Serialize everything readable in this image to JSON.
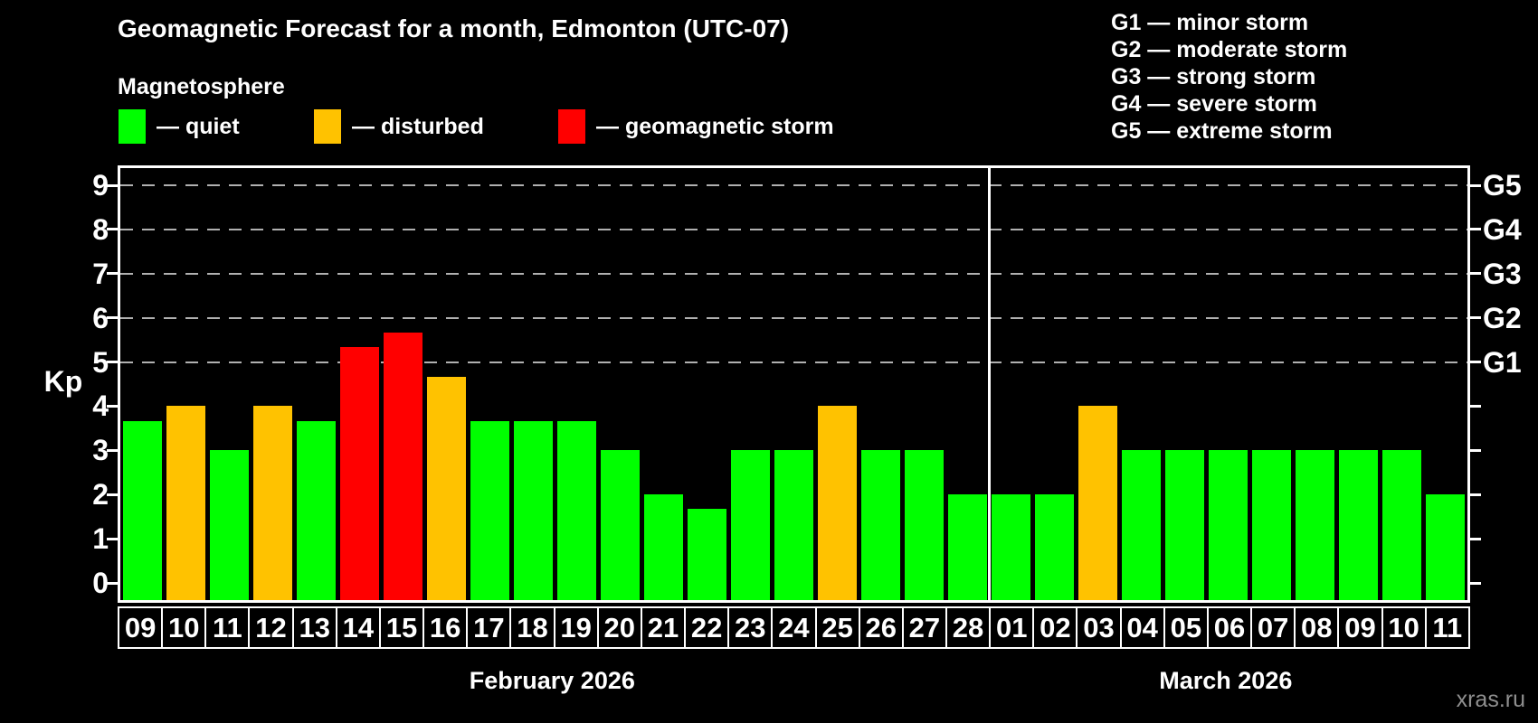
{
  "title": "Geomagnetic Forecast for a month, Edmonton (UTC-07)",
  "subtitle": "Magnetosphere",
  "watermark": "xras.ru",
  "colors": {
    "quiet": "#00ff00",
    "disturbed": "#ffc200",
    "storm": "#ff0000",
    "grid": "#b0b0b0",
    "frame": "#ffffff"
  },
  "legend": {
    "items": [
      {
        "status": "quiet",
        "label": "— quiet"
      },
      {
        "status": "disturbed",
        "label": "— disturbed"
      },
      {
        "status": "storm",
        "label": "— geomagnetic storm"
      }
    ]
  },
  "g_legend": [
    "G1 — minor storm",
    "G2 — moderate storm",
    "G3 — strong storm",
    "G4 — severe storm",
    "G5 — extreme storm"
  ],
  "chart_data": {
    "type": "bar",
    "title": "Geomagnetic Forecast for a month, Edmonton (UTC-07)",
    "ylabel": "Kp",
    "ylim": [
      0,
      9
    ],
    "y_ticks": [
      0,
      1,
      2,
      3,
      4,
      5,
      6,
      7,
      8,
      9
    ],
    "grid_levels": [
      {
        "kp": 5,
        "label": "G1"
      },
      {
        "kp": 6,
        "label": "G2"
      },
      {
        "kp": 7,
        "label": "G3"
      },
      {
        "kp": 8,
        "label": "G4"
      },
      {
        "kp": 9,
        "label": "G5"
      }
    ],
    "months": [
      {
        "label": "February 2026",
        "days": [
          {
            "day": "09",
            "kp": 3.67,
            "status": "quiet"
          },
          {
            "day": "10",
            "kp": 4.0,
            "status": "disturbed"
          },
          {
            "day": "11",
            "kp": 3.0,
            "status": "quiet"
          },
          {
            "day": "12",
            "kp": 4.0,
            "status": "disturbed"
          },
          {
            "day": "13",
            "kp": 3.67,
            "status": "quiet"
          },
          {
            "day": "14",
            "kp": 5.33,
            "status": "storm"
          },
          {
            "day": "15",
            "kp": 5.67,
            "status": "storm"
          },
          {
            "day": "16",
            "kp": 4.67,
            "status": "disturbed"
          },
          {
            "day": "17",
            "kp": 3.67,
            "status": "quiet"
          },
          {
            "day": "18",
            "kp": 3.67,
            "status": "quiet"
          },
          {
            "day": "19",
            "kp": 3.67,
            "status": "quiet"
          },
          {
            "day": "20",
            "kp": 3.0,
            "status": "quiet"
          },
          {
            "day": "21",
            "kp": 2.0,
            "status": "quiet"
          },
          {
            "day": "22",
            "kp": 1.67,
            "status": "quiet"
          },
          {
            "day": "23",
            "kp": 3.0,
            "status": "quiet"
          },
          {
            "day": "24",
            "kp": 3.0,
            "status": "quiet"
          },
          {
            "day": "25",
            "kp": 4.0,
            "status": "disturbed"
          },
          {
            "day": "26",
            "kp": 3.0,
            "status": "quiet"
          },
          {
            "day": "27",
            "kp": 3.0,
            "status": "quiet"
          },
          {
            "day": "28",
            "kp": 2.0,
            "status": "quiet"
          }
        ]
      },
      {
        "label": "March 2026",
        "days": [
          {
            "day": "01",
            "kp": 2.0,
            "status": "quiet"
          },
          {
            "day": "02",
            "kp": 2.0,
            "status": "quiet"
          },
          {
            "day": "03",
            "kp": 4.0,
            "status": "disturbed"
          },
          {
            "day": "04",
            "kp": 3.0,
            "status": "quiet"
          },
          {
            "day": "05",
            "kp": 3.0,
            "status": "quiet"
          },
          {
            "day": "06",
            "kp": 3.0,
            "status": "quiet"
          },
          {
            "day": "07",
            "kp": 3.0,
            "status": "quiet"
          },
          {
            "day": "08",
            "kp": 3.0,
            "status": "quiet"
          },
          {
            "day": "09",
            "kp": 3.0,
            "status": "quiet"
          },
          {
            "day": "10",
            "kp": 3.0,
            "status": "quiet"
          },
          {
            "day": "11",
            "kp": 2.0,
            "status": "quiet"
          }
        ]
      }
    ]
  }
}
